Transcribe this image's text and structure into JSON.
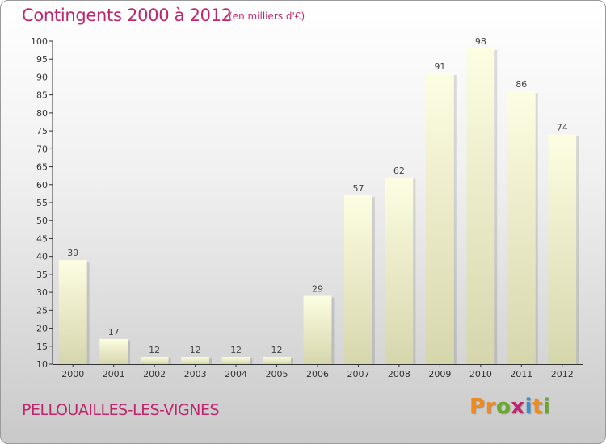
{
  "header": {
    "title": "Contingents 2000 à 2012",
    "unit": "(en milliers d'€)"
  },
  "footer": {
    "place": "PELLOUAILLES-LES-VIGNES",
    "logo": [
      "P",
      "r",
      "o",
      "x",
      "i",
      "t",
      "i"
    ]
  },
  "colors": {
    "title": "#c0266e",
    "bar_top": "#fdfde2",
    "bar_bottom": "#d6d6ad",
    "logo_letters": [
      "#f08a1c",
      "#f08a1c",
      "#6aa829",
      "#c0266e",
      "#3a8fd0",
      "#f08a1c",
      "#6aa829"
    ]
  },
  "chart_data": {
    "type": "bar",
    "title": "Contingents 2000 à 2012",
    "subtitle": "(en milliers d'€)",
    "categories": [
      "2000",
      "2001",
      "2002",
      "2003",
      "2004",
      "2005",
      "2006",
      "2007",
      "2008",
      "2009",
      "2010",
      "2011",
      "2012"
    ],
    "values": [
      39,
      17,
      12,
      12,
      12,
      12,
      29,
      57,
      62,
      91,
      98,
      86,
      74
    ],
    "ylim": [
      10,
      100
    ],
    "yticks": [
      10,
      15,
      20,
      25,
      30,
      35,
      40,
      45,
      50,
      55,
      60,
      65,
      70,
      75,
      80,
      85,
      90,
      95,
      100
    ],
    "xlabel": "",
    "ylabel": "",
    "grid": false,
    "legend": "none"
  }
}
